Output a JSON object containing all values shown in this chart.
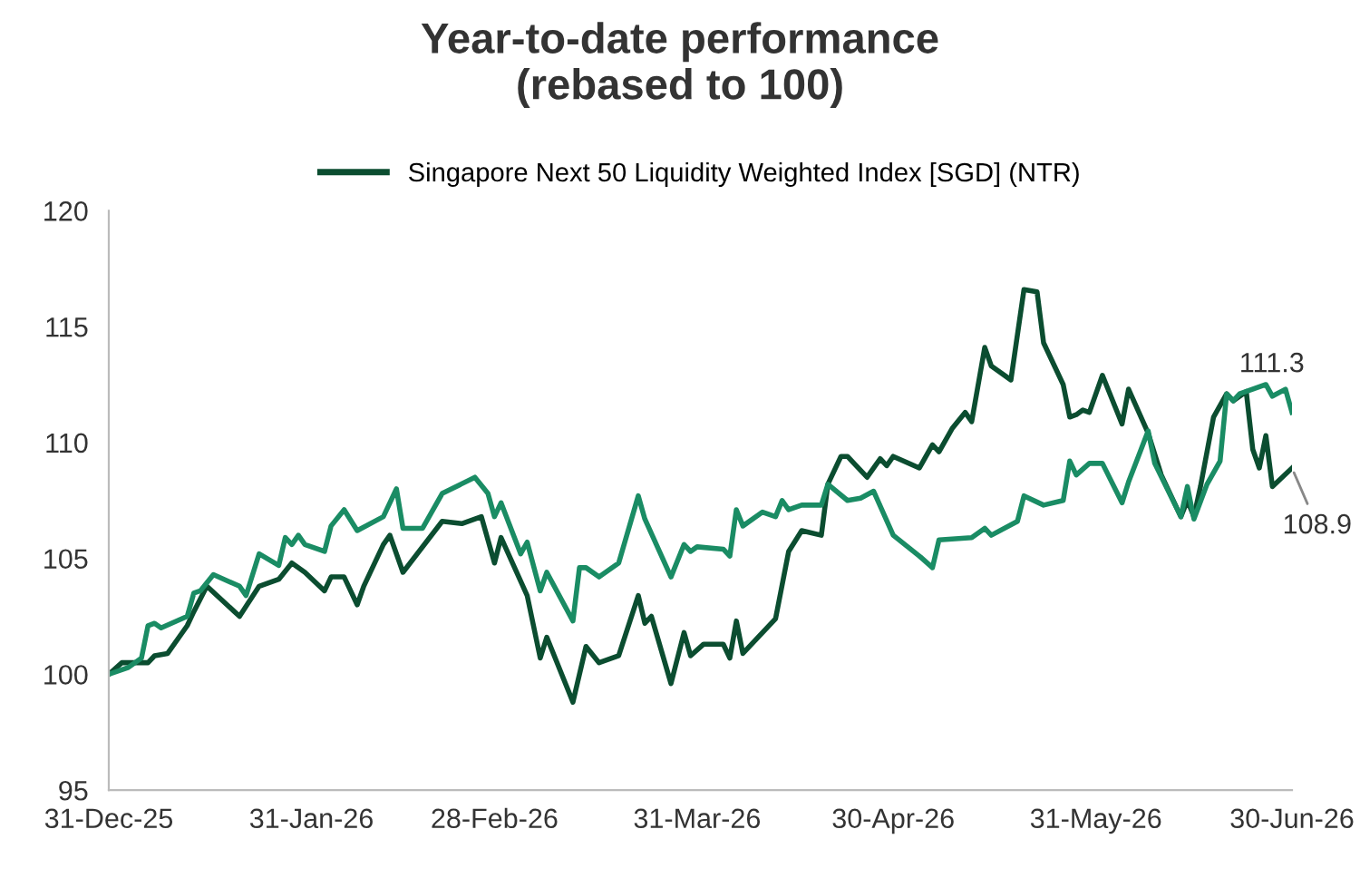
{
  "chart_data": {
    "type": "line",
    "title": "Year-to-date performance\n(rebased to 100)",
    "series": [
      {
        "name": "Singapore Next 50 Liquidity Weighted Index [SGD] (NTR)",
        "color": "#0b4d30",
        "x": [
          "2025-12-31",
          "2026-01-02",
          "2026-01-06",
          "2026-01-07",
          "2026-01-09",
          "2026-01-12",
          "2026-01-13",
          "2026-01-15",
          "2026-01-20",
          "2026-01-23",
          "2026-01-26",
          "2026-01-28",
          "2026-01-30",
          "2026-02-02",
          "2026-02-03",
          "2026-02-05",
          "2026-02-07",
          "2026-02-08",
          "2026-02-11",
          "2026-02-12",
          "2026-02-14",
          "2026-02-20",
          "2026-02-23",
          "2026-02-26",
          "2026-02-28",
          "2026-03-01",
          "2026-03-05",
          "2026-03-07",
          "2026-03-08",
          "2026-03-12",
          "2026-03-14",
          "2026-03-16",
          "2026-03-19",
          "2026-03-22",
          "2026-03-23",
          "2026-03-24",
          "2026-03-27",
          "2026-03-29",
          "2026-03-30",
          "2026-04-01",
          "2026-04-04",
          "2026-04-05",
          "2026-04-06",
          "2026-04-07",
          "2026-04-12",
          "2026-04-14",
          "2026-04-16",
          "2026-04-19",
          "2026-04-20",
          "2026-04-22",
          "2026-04-23",
          "2026-04-26",
          "2026-04-28",
          "2026-04-29",
          "2026-04-30",
          "2026-05-04",
          "2026-05-06",
          "2026-05-07",
          "2026-05-09",
          "2026-05-11",
          "2026-05-12",
          "2026-05-14",
          "2026-05-15",
          "2026-05-18",
          "2026-05-20",
          "2026-05-22",
          "2026-05-23",
          "2026-05-26",
          "2026-05-27",
          "2026-05-28",
          "2026-05-29",
          "2026-05-30",
          "2026-06-01",
          "2026-06-04",
          "2026-06-05",
          "2026-06-08",
          "2026-06-10",
          "2026-06-13",
          "2026-06-14",
          "2026-06-15",
          "2026-06-16",
          "2026-06-18",
          "2026-06-20",
          "2026-06-21",
          "2026-06-23",
          "2026-06-24",
          "2026-06-25",
          "2026-06-26",
          "2026-06-27",
          "2026-06-30"
        ],
        "values": [
          100.0,
          100.5,
          100.5,
          100.8,
          100.9,
          102.1,
          102.7,
          103.8,
          102.5,
          103.8,
          104.1,
          104.8,
          104.4,
          103.6,
          104.2,
          104.2,
          103.0,
          103.8,
          105.6,
          106.0,
          104.4,
          106.6,
          106.5,
          106.8,
          104.8,
          105.9,
          103.4,
          100.7,
          101.6,
          98.8,
          101.2,
          100.5,
          100.8,
          103.4,
          102.2,
          102.5,
          99.6,
          101.8,
          100.8,
          101.3,
          101.3,
          100.7,
          102.3,
          100.9,
          102.4,
          105.3,
          106.2,
          106.0,
          108.2,
          109.4,
          109.4,
          108.5,
          109.3,
          109.0,
          109.4,
          108.9,
          109.9,
          109.6,
          110.6,
          111.3,
          110.9,
          114.1,
          113.3,
          112.7,
          116.6,
          116.5,
          114.3,
          112.5,
          111.1,
          111.2,
          111.4,
          111.3,
          112.9,
          110.8,
          112.3,
          110.4,
          108.6,
          106.8,
          107.5,
          106.8,
          108.1,
          111.1,
          112.1,
          111.8,
          112.2,
          109.7,
          108.9,
          110.3,
          108.1,
          108.9
        ]
      },
      {
        "color": "#1a8c64",
        "x": [
          "2025-12-31",
          "2026-01-03",
          "2026-01-05",
          "2026-01-06",
          "2026-01-07",
          "2026-01-08",
          "2026-01-12",
          "2026-01-13",
          "2026-01-14",
          "2026-01-16",
          "2026-01-20",
          "2026-01-21",
          "2026-01-23",
          "2026-01-26",
          "2026-01-27",
          "2026-01-28",
          "2026-01-29",
          "2026-01-30",
          "2026-02-02",
          "2026-02-03",
          "2026-02-05",
          "2026-02-07",
          "2026-02-11",
          "2026-02-13",
          "2026-02-14",
          "2026-02-17",
          "2026-02-20",
          "2026-02-25",
          "2026-02-27",
          "2026-02-28",
          "2026-03-01",
          "2026-03-04",
          "2026-03-05",
          "2026-03-07",
          "2026-03-08",
          "2026-03-12",
          "2026-03-13",
          "2026-03-14",
          "2026-03-16",
          "2026-03-19",
          "2026-03-22",
          "2026-03-23",
          "2026-03-27",
          "2026-03-29",
          "2026-03-30",
          "2026-03-31",
          "2026-04-04",
          "2026-04-05",
          "2026-04-06",
          "2026-04-07",
          "2026-04-10",
          "2026-04-12",
          "2026-04-13",
          "2026-04-14",
          "2026-04-16",
          "2026-04-19",
          "2026-04-20",
          "2026-04-23",
          "2026-04-25",
          "2026-04-27",
          "2026-04-30",
          "2026-05-04",
          "2026-05-06",
          "2026-05-07",
          "2026-05-12",
          "2026-05-14",
          "2026-05-15",
          "2026-05-19",
          "2026-05-20",
          "2026-05-23",
          "2026-05-26",
          "2026-05-27",
          "2026-05-28",
          "2026-05-30",
          "2026-06-01",
          "2026-06-04",
          "2026-06-05",
          "2026-06-08",
          "2026-06-09",
          "2026-06-13",
          "2026-06-14",
          "2026-06-15",
          "2026-06-17",
          "2026-06-19",
          "2026-06-20",
          "2026-06-21",
          "2026-06-22",
          "2026-06-26",
          "2026-06-27",
          "2026-06-29",
          "2026-06-30"
        ],
        "values": [
          100.0,
          100.3,
          100.7,
          102.1,
          102.2,
          102.0,
          102.5,
          103.5,
          103.6,
          104.3,
          103.8,
          103.4,
          105.2,
          104.7,
          105.9,
          105.6,
          106.0,
          105.6,
          105.3,
          106.4,
          107.1,
          106.2,
          106.8,
          108.0,
          106.3,
          106.3,
          107.8,
          108.5,
          107.8,
          106.8,
          107.4,
          105.2,
          105.7,
          103.6,
          104.4,
          102.3,
          104.6,
          104.6,
          104.2,
          104.8,
          107.7,
          106.7,
          104.2,
          105.6,
          105.3,
          105.5,
          105.4,
          105.1,
          107.1,
          106.4,
          107.0,
          106.8,
          107.5,
          107.1,
          107.3,
          107.3,
          108.2,
          107.5,
          107.6,
          107.9,
          106.0,
          105.1,
          104.6,
          105.8,
          105.9,
          106.3,
          106.0,
          106.6,
          107.7,
          107.3,
          107.5,
          109.2,
          108.6,
          109.1,
          109.1,
          107.4,
          108.3,
          110.5,
          109.1,
          106.8,
          108.1,
          106.7,
          108.2,
          109.2,
          112.1,
          111.8,
          112.1,
          112.5,
          112.0,
          112.3,
          111.3
        ]
      }
    ],
    "xlim": [
      "2025-12-31",
      "2026-06-30"
    ],
    "xticks": [
      {
        "value": "2025-12-31",
        "label": "31-Dec-25"
      },
      {
        "value": "2026-01-31",
        "label": "31-Jan-26"
      },
      {
        "value": "2026-02-28",
        "label": "28-Feb-26"
      },
      {
        "value": "2026-03-31",
        "label": "31-Mar-26"
      },
      {
        "value": "2026-04-30",
        "label": "30-Apr-26"
      },
      {
        "value": "2026-05-31",
        "label": "31-May-26"
      },
      {
        "value": "2026-06-30",
        "label": "30-Jun-26"
      }
    ],
    "ylim": [
      95,
      120
    ],
    "yticks": [
      95,
      100,
      105,
      110,
      115,
      120
    ],
    "annotations": [
      {
        "text": "111.3",
        "x": "2026-06-30",
        "y": 111.3
      },
      {
        "text": "108.9",
        "x": "2026-06-30",
        "y": 108.9
      }
    ],
    "legend": "top",
    "grid": false,
    "marker": "none",
    "line_style": "solid"
  }
}
